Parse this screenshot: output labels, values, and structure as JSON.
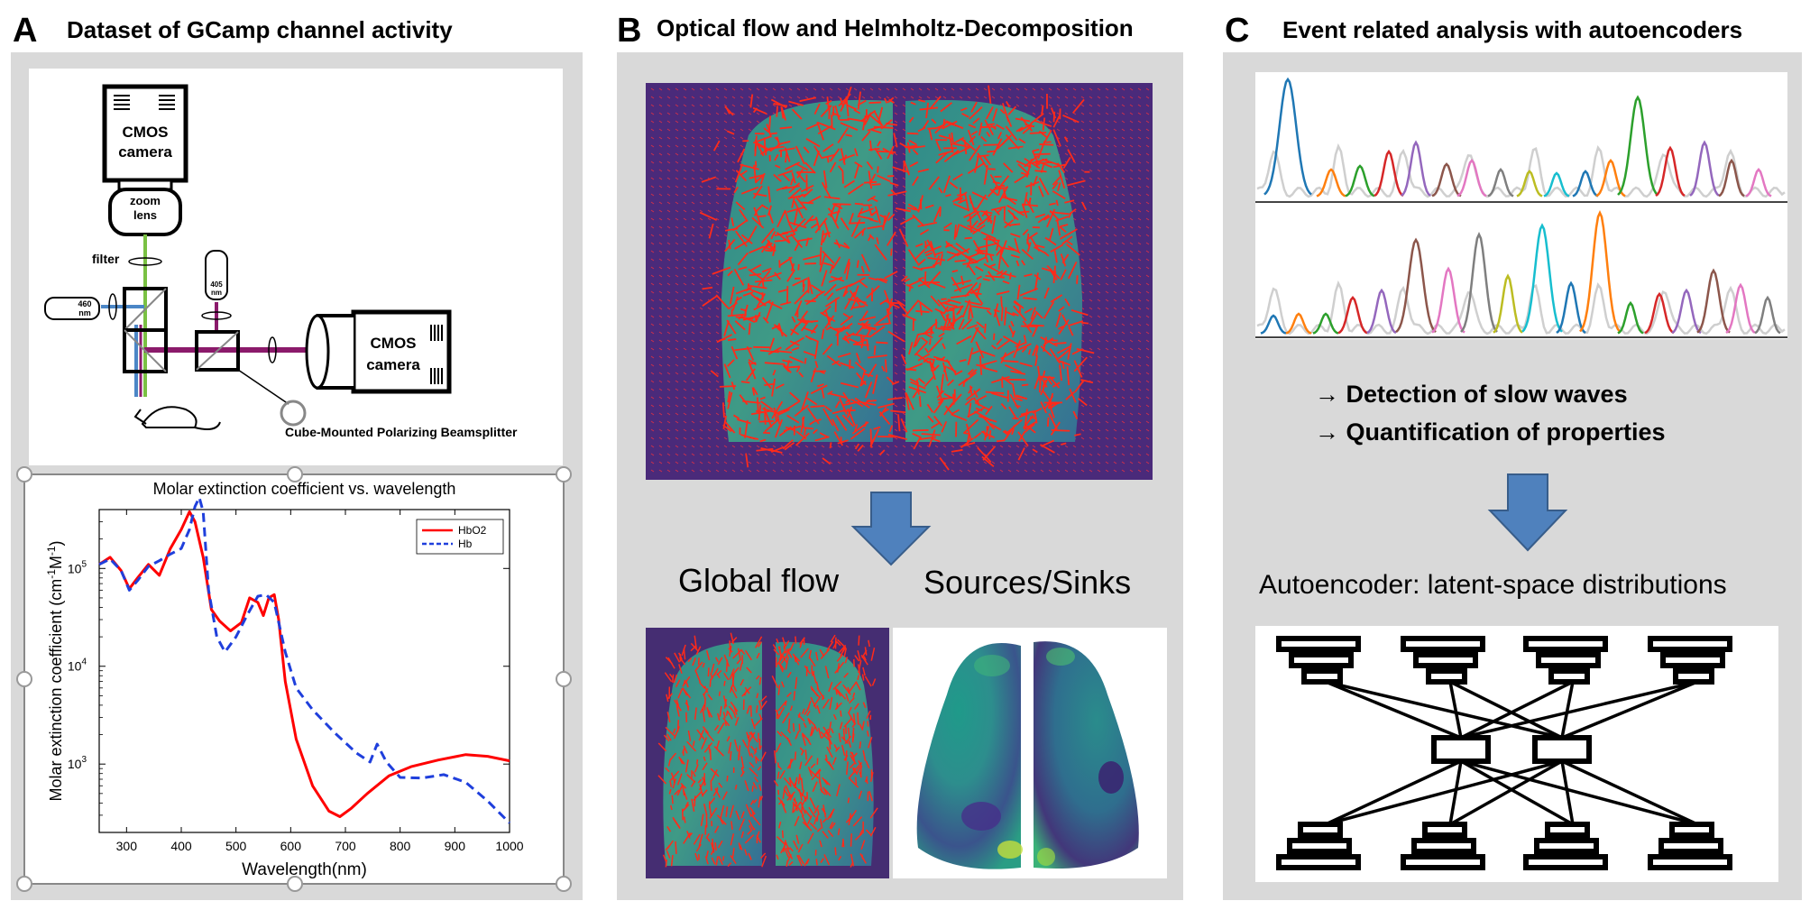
{
  "panels": {
    "a": {
      "letter": "A",
      "title": "Dataset of GCamp channel activity",
      "setup": {
        "camera_top": [
          "CMOS",
          "camera"
        ],
        "zoom_lens": [
          "zoom",
          "lens"
        ],
        "filter": "filter",
        "led_left": [
          "460",
          "nm"
        ],
        "led_top": [
          "405",
          "nm"
        ],
        "camera_right": [
          "CMOS",
          "camera"
        ],
        "beamsplitter": "Cube-Mounted Polarizing Beamsplitter"
      }
    },
    "b": {
      "letter": "B",
      "title": "Optical flow and Helmholtz-Decomposition",
      "global_flow": "Global flow",
      "sources_sinks": "Sources/Sinks"
    },
    "c": {
      "letter": "C",
      "title": "Event related analysis with autoencoders",
      "bullet1": "→ Detection of slow waves",
      "bullet2": "→ Quantification of properties",
      "autoencoder": "Autoencoder: latent-space distributions"
    }
  },
  "chart_data": {
    "type": "line",
    "title": "Molar extinction coefficient vs. wavelength",
    "xlabel": "Wavelength(nm)",
    "ylabel": "Molar extinction coefficient (cm-1M-1)",
    "ylabel_parts": {
      "main": "Molar extinction coefficient (cm",
      "sup1": "-1",
      "mid": "M",
      "sup2": "-1",
      "end": ")"
    },
    "xlim": [
      250,
      1000
    ],
    "ylim": [
      200,
      400000
    ],
    "yscale": "log",
    "xticks": [
      300,
      400,
      500,
      600,
      700,
      800,
      900,
      1000
    ],
    "yticks": [
      {
        "value": 1000,
        "label": "10",
        "exp": "3"
      },
      {
        "value": 10000,
        "label": "10",
        "exp": "4"
      },
      {
        "value": 100000,
        "label": "10",
        "exp": "5"
      }
    ],
    "legend_position": "top-right",
    "series": [
      {
        "name": "HbO2",
        "color": "#ff0000",
        "style": "solid",
        "x": [
          250,
          270,
          290,
          305,
          320,
          340,
          360,
          380,
          400,
          415,
          425,
          440,
          455,
          470,
          490,
          510,
          525,
          540,
          550,
          560,
          570,
          578,
          590,
          610,
          640,
          670,
          690,
          710,
          740,
          780,
          820,
          870,
          920,
          960,
          1000
        ],
        "y": [
          110000,
          130000,
          95000,
          62000,
          80000,
          110000,
          85000,
          160000,
          250000,
          380000,
          300000,
          130000,
          38000,
          29000,
          23000,
          28000,
          50000,
          45000,
          33000,
          50000,
          54000,
          30000,
          7000,
          1800,
          600,
          330,
          290,
          350,
          500,
          760,
          940,
          1100,
          1250,
          1200,
          1080
        ]
      },
      {
        "name": "Hb",
        "color": "#1f3fdc",
        "style": "dashed",
        "x": [
          250,
          270,
          290,
          305,
          320,
          340,
          360,
          380,
          400,
          415,
          425,
          433,
          440,
          450,
          465,
          480,
          500,
          520,
          540,
          555,
          570,
          590,
          610,
          640,
          680,
          720,
          745,
          758,
          775,
          800,
          840,
          880,
          920,
          960,
          1000
        ],
        "y": [
          110000,
          125000,
          95000,
          60000,
          75000,
          105000,
          120000,
          140000,
          160000,
          250000,
          430000,
          530000,
          380000,
          60000,
          20000,
          14000,
          20000,
          33000,
          52000,
          54000,
          45000,
          14000,
          6000,
          3600,
          2100,
          1300,
          1050,
          1600,
          1050,
          730,
          720,
          780,
          650,
          420,
          250
        ]
      }
    ]
  }
}
